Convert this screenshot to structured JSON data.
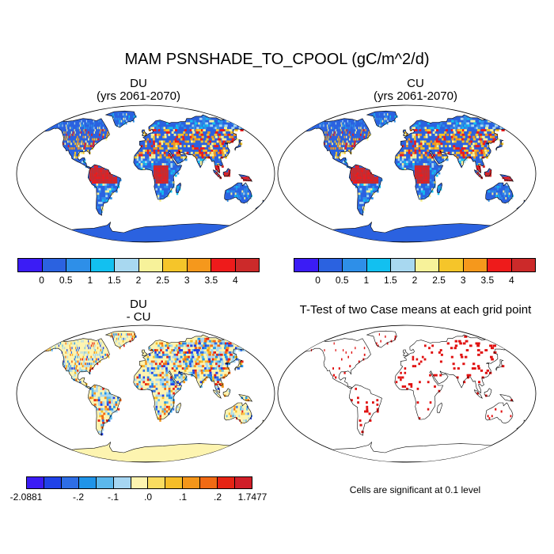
{
  "main_title": "MAM PSNSHADE_TO_CPOOL (gC/m^2/d)",
  "panels": {
    "du": {
      "title_line1": "DU",
      "title_line2": "(yrs 2061-2070)"
    },
    "cu": {
      "title_line1": "CU",
      "title_line2": "(yrs 2061-2070)"
    },
    "diff": {
      "title_line1": "DU",
      "title_line2": "- CU"
    },
    "ttest": {
      "title": "T-Test of two Case means at each grid point"
    }
  },
  "colorbar_abs": {
    "colors": [
      "#3b1cf5",
      "#2b62e0",
      "#2e8fe8",
      "#12c0f0",
      "#a8d8f0",
      "#f7f29a",
      "#f5c52a",
      "#f5981c",
      "#ee1b1b",
      "#cc2a2a"
    ],
    "labels": [
      "0",
      "0.5",
      "1",
      "1.5",
      "2",
      "2.5",
      "3",
      "3.5",
      "4"
    ]
  },
  "colorbar_diff": {
    "colors": [
      "#3b1cf5",
      "#2042e8",
      "#2e6ee6",
      "#2094e8",
      "#5cb8ec",
      "#a6d6f2",
      "#fdf4b0",
      "#f9dc60",
      "#f5bd28",
      "#f4961a",
      "#f16a14",
      "#e62414",
      "#d01e28"
    ],
    "labels": [
      "-2.0881",
      "-.2",
      "-.1",
      ".0",
      ".1",
      ".2",
      "1.7477"
    ]
  },
  "ttest_note": "Cells are significant at 0.1 level",
  "colors": {
    "ocean": "#ffffff",
    "land_abs_base": "#2b62e0",
    "land_diff_base": "#fdf4b0",
    "significant": "#e01010",
    "coast": "#000000"
  }
}
